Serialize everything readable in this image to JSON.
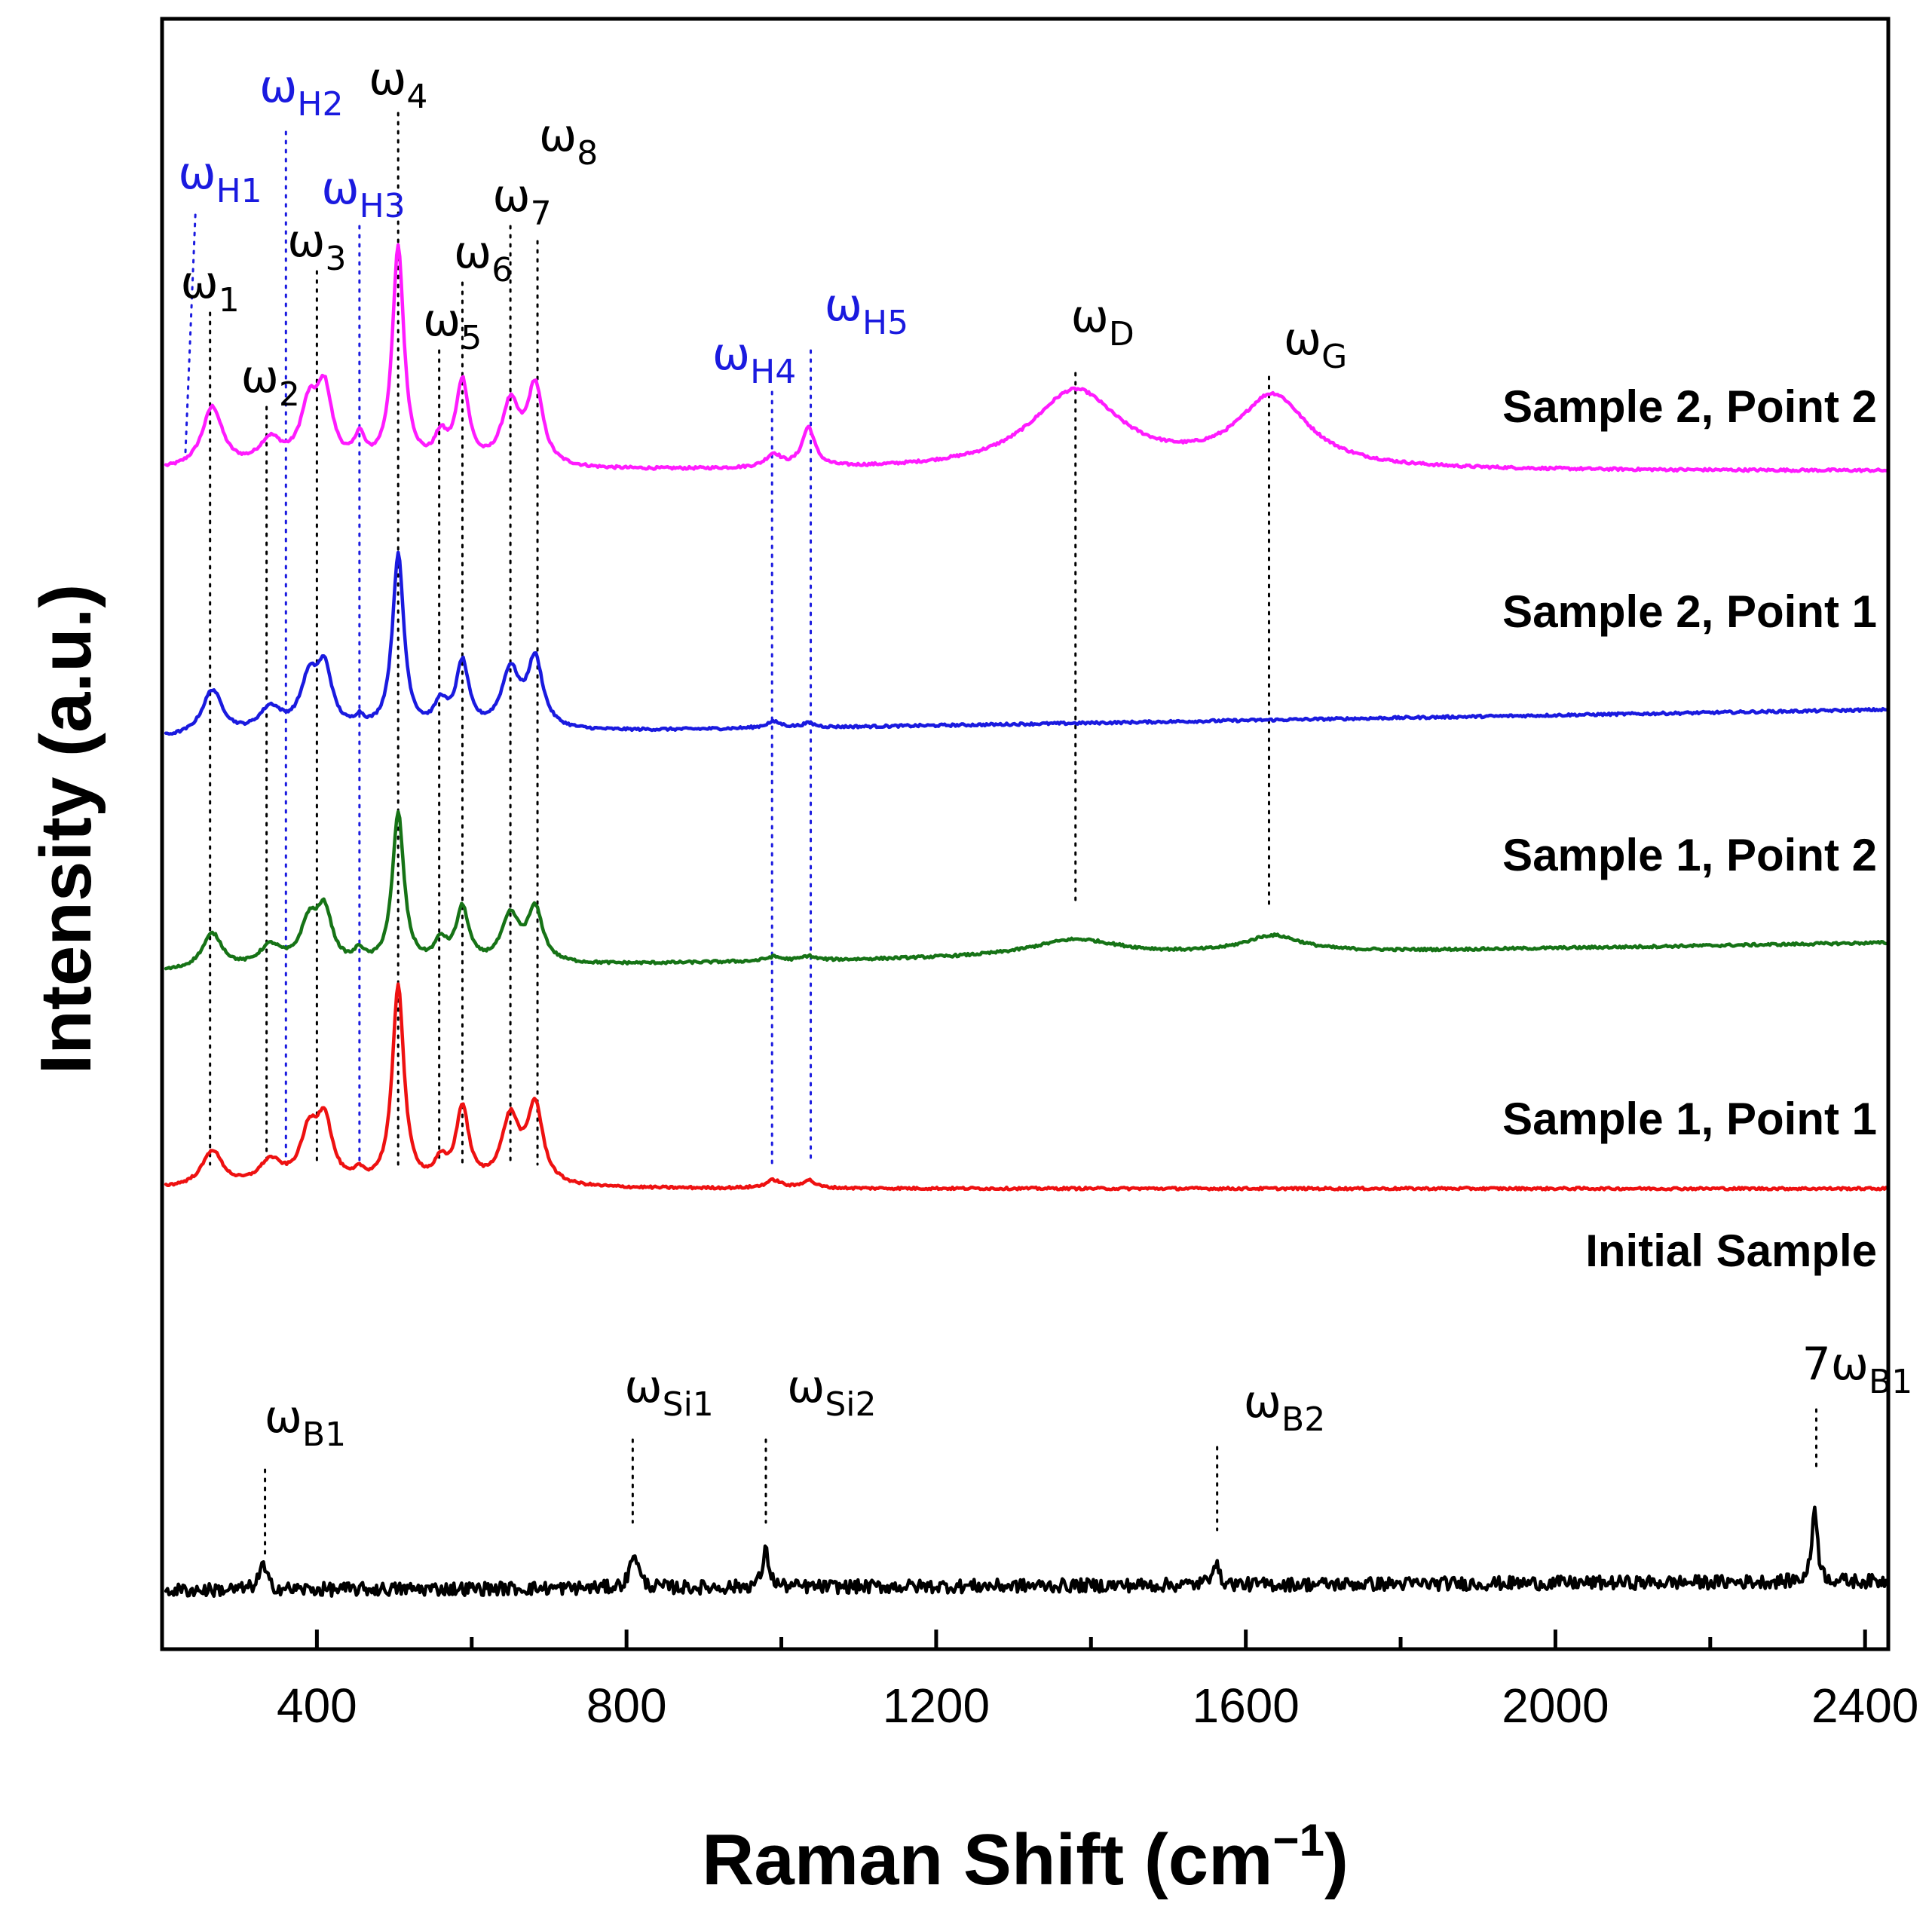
{
  "chart_data": {
    "type": "line",
    "title": "",
    "xlabel": "Raman Shift (cm⁻¹)",
    "xlabel_main": "Raman Shift (cm",
    "xlabel_sup": "−1",
    "xlabel_close": ")",
    "ylabel": "Intensity (a.u.)",
    "xlim": [
      200,
      2430
    ],
    "xticks": [
      400,
      800,
      1200,
      1600,
      2000,
      2400
    ],
    "xtick_labels": [
      "400",
      "800",
      "1200",
      "1600",
      "2000",
      "2400"
    ],
    "minor_tick_step": 200,
    "grid": false,
    "legend": "text labels at right end of each trace",
    "colors": {
      "s22": "#ff1bff",
      "s21": "#1a1adf",
      "s12": "#167316",
      "s11": "#ee1111",
      "init": "#000000",
      "blue_label": "#1a1adf",
      "black_label": "#000000"
    },
    "series": [
      {
        "key": "s22",
        "name": "Sample 2, Point 2",
        "color": "#ff1bff",
        "baseline": 0.0,
        "slope": 0.0,
        "peaks": [
          [
            265,
            0.28,
            16
          ],
          [
            340,
            0.12,
            18
          ],
          [
            390,
            0.26,
            14
          ],
          [
            410,
            0.32,
            12
          ],
          [
            455,
            0.12,
            8
          ],
          [
            505,
            1.0,
            9
          ],
          [
            560,
            0.12,
            10
          ],
          [
            588,
            0.38,
            10
          ],
          [
            650,
            0.28,
            14
          ],
          [
            682,
            0.36,
            12
          ],
          [
            990,
            0.06,
            12
          ],
          [
            1035,
            0.18,
            10
          ],
          [
            1380,
            0.36,
            70
          ],
          [
            1635,
            0.33,
            55
          ]
        ]
      },
      {
        "key": "s21",
        "name": "Sample 2, Point 1",
        "color": "#1a1adf",
        "baseline": 0.0,
        "slope": 0.14,
        "peaks": [
          [
            265,
            0.22,
            16
          ],
          [
            340,
            0.12,
            18
          ],
          [
            390,
            0.24,
            14
          ],
          [
            410,
            0.28,
            12
          ],
          [
            455,
            0.05,
            8
          ],
          [
            505,
            0.85,
            9
          ],
          [
            560,
            0.12,
            10
          ],
          [
            588,
            0.32,
            10
          ],
          [
            650,
            0.28,
            14
          ],
          [
            682,
            0.33,
            12
          ],
          [
            990,
            0.03,
            12
          ],
          [
            1035,
            0.02,
            10
          ]
        ]
      },
      {
        "key": "s12",
        "name": "Sample 1, Point 2",
        "color": "#167316",
        "baseline": 0.0,
        "slope": 0.14,
        "peaks": [
          [
            265,
            0.17,
            16
          ],
          [
            340,
            0.1,
            18
          ],
          [
            390,
            0.2,
            14
          ],
          [
            410,
            0.24,
            12
          ],
          [
            455,
            0.06,
            8
          ],
          [
            505,
            0.72,
            9
          ],
          [
            560,
            0.1,
            10
          ],
          [
            588,
            0.26,
            10
          ],
          [
            650,
            0.22,
            14
          ],
          [
            682,
            0.25,
            12
          ],
          [
            990,
            0.02,
            12
          ],
          [
            1035,
            0.02,
            10
          ],
          [
            1380,
            0.08,
            70
          ],
          [
            1635,
            0.08,
            45
          ]
        ]
      },
      {
        "key": "s11",
        "name": "Sample 1, Point 1",
        "color": "#ee1111",
        "baseline": 0.0,
        "slope": 0.0,
        "peaks": [
          [
            265,
            0.18,
            16
          ],
          [
            340,
            0.12,
            18
          ],
          [
            390,
            0.25,
            14
          ],
          [
            410,
            0.3,
            12
          ],
          [
            455,
            0.05,
            8
          ],
          [
            505,
            1.0,
            9
          ],
          [
            560,
            0.1,
            10
          ],
          [
            588,
            0.38,
            10
          ],
          [
            650,
            0.33,
            14
          ],
          [
            682,
            0.39,
            12
          ],
          [
            990,
            0.04,
            12
          ],
          [
            1035,
            0.04,
            10
          ]
        ]
      },
      {
        "key": "init",
        "name": "Initial Sample",
        "color": "#000000",
        "baseline": 0.0,
        "slope": 0.03,
        "peaks": [
          [
            330,
            0.08,
            6
          ],
          [
            810,
            0.12,
            6
          ],
          [
            980,
            0.12,
            5
          ],
          [
            1560,
            0.08,
            5
          ],
          [
            2335,
            0.26,
            4
          ]
        ]
      }
    ],
    "peak_markers": [
      {
        "base": "ω",
        "sub": "1",
        "x": 262,
        "color": "#000000"
      },
      {
        "base": "ω",
        "sub": "2",
        "x": 335,
        "color": "#000000"
      },
      {
        "base": "ω",
        "sub": "3",
        "x": 400,
        "color": "#000000"
      },
      {
        "base": "ω",
        "sub": "4",
        "x": 505,
        "color": "#000000"
      },
      {
        "base": "ω",
        "sub": "5",
        "x": 558,
        "color": "#000000"
      },
      {
        "base": "ω",
        "sub": "6",
        "x": 588,
        "color": "#000000"
      },
      {
        "base": "ω",
        "sub": "7",
        "x": 650,
        "color": "#000000"
      },
      {
        "base": "ω",
        "sub": "8",
        "x": 685,
        "color": "#000000"
      },
      {
        "base": "ω",
        "sub": "H1",
        "x": 243,
        "color": "#1a1adf"
      },
      {
        "base": "ω",
        "sub": "H2",
        "x": 360,
        "color": "#1a1adf"
      },
      {
        "base": "ω",
        "sub": "H3",
        "x": 455,
        "color": "#1a1adf"
      },
      {
        "base": "ω",
        "sub": "H4",
        "x": 988,
        "color": "#1a1adf"
      },
      {
        "base": "ω",
        "sub": "H5",
        "x": 1038,
        "color": "#1a1adf"
      },
      {
        "base": "ω",
        "sub": "D",
        "x": 1380,
        "color": "#000000"
      },
      {
        "base": "ω",
        "sub": "G",
        "x": 1630,
        "color": "#000000"
      },
      {
        "base": "ω",
        "sub": "B1",
        "x": 333,
        "color": "#000000"
      },
      {
        "base": "ω",
        "sub": "Si1",
        "x": 808,
        "color": "#000000"
      },
      {
        "base": "ω",
        "sub": "Si2",
        "x": 980,
        "color": "#000000"
      },
      {
        "base": "ω",
        "sub": "B2",
        "x": 1563,
        "color": "#000000"
      },
      {
        "base": "7ω",
        "sub": "B1",
        "x": 2337,
        "color": "#000000"
      }
    ]
  }
}
